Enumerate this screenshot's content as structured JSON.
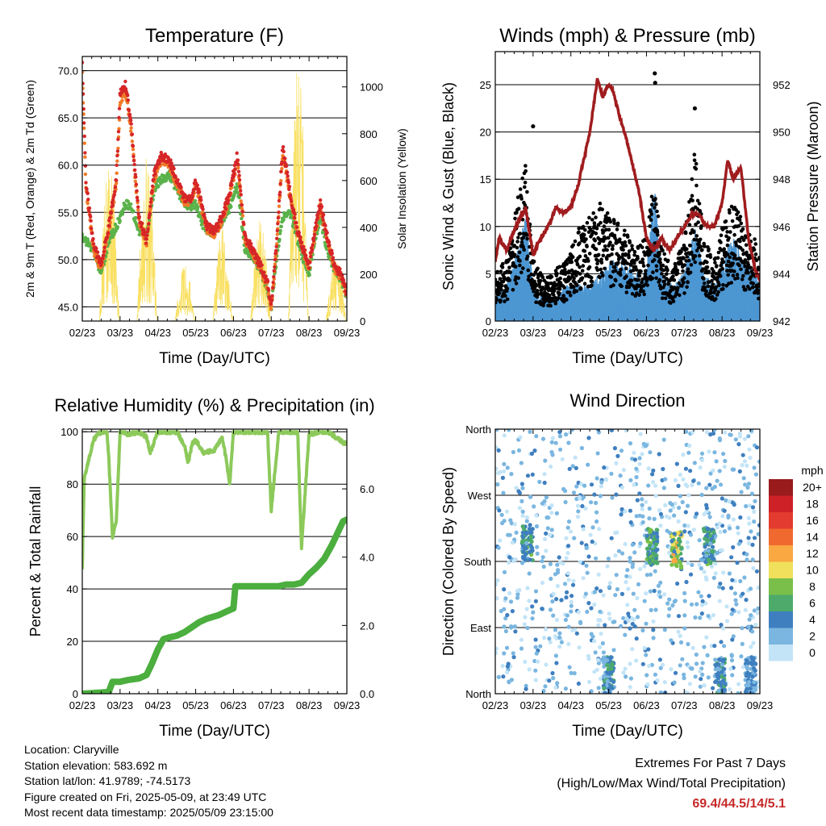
{
  "chart_data": [
    {
      "type": "line",
      "title": "Temperature (F)",
      "xlabel": "Time (Day/UTC)",
      "ylabel": "2m & 9m T (Red, Orange) & 2m Td (Green)",
      "ylabel_right": "Solar Insolation (Yellow)",
      "x_ticks": [
        "02/23",
        "03/23",
        "04/23",
        "05/23",
        "06/23",
        "07/23",
        "08/23",
        "09/23"
      ],
      "ylim": [
        43.5,
        71.5
      ],
      "y_ticks": [
        "45.0",
        "50.0",
        "55.0",
        "60.0",
        "65.0",
        "70.0"
      ],
      "y_tick_values": [
        45,
        50,
        55,
        60,
        65,
        70
      ],
      "ylim_right": [
        0,
        1130
      ],
      "y_ticks_right": [
        "0",
        "200",
        "400",
        "600",
        "800",
        "1000"
      ],
      "y_tick_values_right": [
        0,
        200,
        400,
        600,
        800,
        1000
      ],
      "grid": "horizontal",
      "series": [
        {
          "key": "t2m",
          "color": "#d62628",
          "style": "dots",
          "x": [
            0,
            0.1,
            0.3,
            0.5,
            0.7,
            0.9,
            1.0,
            1.15,
            1.3,
            1.5,
            1.7,
            1.9,
            2.1,
            2.3,
            2.5,
            2.7,
            2.9,
            3.0,
            3.15,
            3.3,
            3.5,
            3.7,
            3.9,
            4.1,
            4.3,
            4.5,
            4.7,
            4.9,
            5.0,
            5.15,
            5.3,
            5.5,
            5.7,
            5.9,
            6.0,
            6.15,
            6.3,
            6.5,
            6.7,
            6.85,
            7.0
          ],
          "y": [
            70.5,
            58.0,
            51.5,
            49.5,
            53.5,
            58.5,
            67.5,
            68.5,
            64.0,
            54.5,
            52.0,
            59.0,
            61.0,
            60.5,
            58.5,
            56.5,
            56.5,
            58.5,
            56.0,
            53.5,
            53.0,
            54.5,
            57.0,
            61.0,
            52.5,
            51.0,
            49.5,
            47.5,
            45.0,
            52.0,
            62.0,
            57.0,
            53.0,
            50.5,
            49.5,
            53.0,
            56.0,
            52.0,
            49.0,
            48.5,
            46.5
          ]
        },
        {
          "key": "t9m",
          "color": "#f07a28",
          "style": "dots",
          "x": [
            0,
            0.1,
            0.3,
            0.5,
            0.7,
            0.9,
            1.0,
            1.15,
            1.3,
            1.5,
            1.7,
            1.9,
            2.1,
            2.3,
            2.5,
            2.7,
            2.9,
            3.0,
            3.15,
            3.3,
            3.5,
            3.7,
            3.9,
            4.1,
            4.3,
            4.5,
            4.7,
            4.9,
            5.0,
            5.15,
            5.3,
            5.5,
            5.7,
            5.9,
            6.0,
            6.15,
            6.3,
            6.5,
            6.7,
            6.85,
            7.0
          ],
          "y": [
            69.8,
            57.5,
            51.0,
            49.0,
            53.0,
            58.0,
            66.5,
            67.8,
            63.5,
            54.0,
            51.7,
            58.6,
            60.6,
            60.0,
            58.0,
            56.2,
            56.2,
            58.0,
            55.6,
            53.2,
            52.7,
            54.1,
            56.6,
            60.5,
            52.2,
            50.7,
            49.2,
            47.2,
            44.8,
            51.7,
            61.3,
            56.6,
            52.7,
            50.2,
            49.2,
            52.7,
            55.5,
            51.7,
            48.7,
            48.2,
            46.2
          ]
        },
        {
          "key": "td2m",
          "color": "#5ab24a",
          "style": "dots",
          "x": [
            0,
            0.1,
            0.3,
            0.5,
            0.7,
            0.9,
            1.0,
            1.15,
            1.3,
            1.5,
            1.7,
            1.9,
            2.1,
            2.3,
            2.5,
            2.7,
            2.9,
            3.0,
            3.15,
            3.3,
            3.5,
            3.7,
            3.9,
            4.1,
            4.3,
            4.5,
            4.7,
            4.9,
            5.0,
            5.15,
            5.3,
            5.5,
            5.7,
            5.9,
            6.0,
            6.15,
            6.3,
            6.5,
            6.7,
            6.85,
            7.0
          ],
          "y": [
            52.5,
            52.0,
            51.0,
            48.5,
            52.0,
            53.5,
            54.5,
            56.0,
            55.5,
            53.0,
            52.5,
            57.5,
            58.5,
            59.0,
            57.5,
            56.0,
            55.5,
            56.0,
            54.0,
            53.0,
            53.0,
            54.0,
            55.5,
            58.0,
            51.0,
            50.5,
            49.0,
            47.0,
            44.8,
            50.5,
            54.5,
            55.0,
            52.0,
            49.5,
            48.5,
            52.0,
            54.5,
            50.5,
            48.5,
            48.0,
            46.0
          ]
        },
        {
          "key": "solar",
          "color": "#f9e062",
          "style": "spikes",
          "axis": "right",
          "days": [
            {
              "start": 0.45,
              "end": 0.98,
              "peak": 700
            },
            {
              "start": 1.45,
              "end": 1.98,
              "peak": 720
            },
            {
              "start": 2.45,
              "end": 2.98,
              "peak": 240
            },
            {
              "start": 3.45,
              "end": 3.98,
              "peak": 400
            },
            {
              "start": 4.45,
              "end": 4.98,
              "peak": 440
            },
            {
              "start": 5.45,
              "end": 5.98,
              "peak": 1120
            },
            {
              "start": 6.45,
              "end": 6.98,
              "peak": 280
            }
          ]
        }
      ]
    },
    {
      "type": "scatter",
      "title": "Winds (mph) & Pressure (mb)",
      "xlabel": "Time (Day/UTC)",
      "ylabel": "Sonic Wind & Gust (Blue, Black)",
      "ylabel_right": "Station Pressure (Maroon)",
      "x_ticks": [
        "02/23",
        "03/23",
        "04/23",
        "05/23",
        "06/23",
        "07/23",
        "08/23",
        "09/23"
      ],
      "ylim": [
        0,
        28.5
      ],
      "y_ticks": [
        "0",
        "5",
        "10",
        "15",
        "20",
        "25"
      ],
      "y_tick_values": [
        0,
        5,
        10,
        15,
        20,
        25
      ],
      "ylim_right": [
        942,
        953.4
      ],
      "y_ticks_right": [
        "942",
        "944",
        "946",
        "948",
        "950",
        "952"
      ],
      "y_tick_values_right": [
        942,
        944,
        946,
        948,
        950,
        952
      ],
      "grid": "horizontal",
      "series": [
        {
          "key": "wind",
          "color": "#4d97d3",
          "style": "band",
          "x": [
            0,
            0.3,
            0.6,
            0.8,
            1.0,
            1.3,
            1.6,
            1.9,
            2.2,
            2.5,
            2.8,
            3.1,
            3.4,
            3.7,
            4.0,
            4.2,
            4.4,
            4.7,
            5.0,
            5.3,
            5.5,
            5.8,
            6.0,
            6.3,
            6.6,
            6.9,
            7.0
          ],
          "y": [
            2,
            3,
            6,
            9,
            3,
            2,
            2,
            3,
            3,
            3,
            4,
            5,
            5,
            4,
            4,
            12,
            4,
            3,
            4,
            8,
            4,
            3,
            5,
            7,
            5,
            4,
            3
          ]
        },
        {
          "key": "gust",
          "color": "#000000",
          "style": "dots",
          "x": [
            0,
            0.3,
            0.6,
            0.8,
            1.0,
            1.3,
            1.6,
            1.9,
            2.2,
            2.5,
            2.8,
            3.1,
            3.4,
            3.7,
            4.0,
            4.2,
            4.4,
            4.7,
            5.0,
            5.3,
            5.5,
            5.8,
            6.0,
            6.3,
            6.6,
            6.9,
            7.0
          ],
          "y": [
            5,
            6,
            12,
            15,
            6,
            4,
            5,
            6,
            9,
            10,
            12,
            10,
            9,
            7,
            8,
            14,
            7,
            5,
            8,
            17,
            8,
            6,
            9,
            12,
            9,
            8,
            6
          ]
        },
        {
          "key": "pressure",
          "color": "#a01c1e",
          "style": "line",
          "axis": "right",
          "x": [
            0,
            0.1,
            0.3,
            0.55,
            0.8,
            1.0,
            1.2,
            1.4,
            1.6,
            1.8,
            2.0,
            2.2,
            2.5,
            2.7,
            2.85,
            3.0,
            3.1,
            3.3,
            3.5,
            3.8,
            4.0,
            4.2,
            4.4,
            4.6,
            4.8,
            5.0,
            5.2,
            5.4,
            5.6,
            5.8,
            6.0,
            6.15,
            6.3,
            6.5,
            6.7,
            6.9,
            7.0
          ],
          "y": [
            944.5,
            945.5,
            945.0,
            946.0,
            946.8,
            944.8,
            945.5,
            946.0,
            946.8,
            946.6,
            946.8,
            947.8,
            950.0,
            952.2,
            951.5,
            952.0,
            951.8,
            950.6,
            949.5,
            947.5,
            945.5,
            945.0,
            945.5,
            945.0,
            945.5,
            946.0,
            946.5,
            946.5,
            946.0,
            946.0,
            947.0,
            948.8,
            948.0,
            948.5,
            945.5,
            944.0,
            943.8
          ]
        }
      ],
      "gust_outliers": [
        {
          "x": 4.22,
          "y": 26.2
        },
        {
          "x": 4.23,
          "y": 25.2
        },
        {
          "x": 1.0,
          "y": 20.6
        },
        {
          "x": 5.28,
          "y": 22.5
        }
      ]
    },
    {
      "type": "line",
      "title": "Relative Humidity (%) & Precipitation (in)",
      "xlabel": "Time (Day/UTC)",
      "ylabel": "Percent & Total Rainfall",
      "x_ticks": [
        "02/23",
        "03/23",
        "04/23",
        "05/23",
        "06/23",
        "07/23",
        "08/23",
        "09/23"
      ],
      "ylim": [
        0,
        101
      ],
      "y_ticks": [
        "0",
        "20",
        "40",
        "60",
        "80",
        "100"
      ],
      "y_tick_values": [
        0,
        20,
        40,
        60,
        80,
        100
      ],
      "ylim_right": [
        0,
        7.75
      ],
      "y_ticks_right": [
        "0.0",
        "2.0",
        "4.0",
        "6.0"
      ],
      "y_tick_values_right": [
        0,
        2,
        4,
        6
      ],
      "grid": "horizontal",
      "series": [
        {
          "key": "rh",
          "color": "#8cc95a",
          "style": "line",
          "width": 4,
          "x": [
            0,
            0.05,
            0.15,
            0.3,
            0.5,
            0.65,
            0.7,
            0.8,
            0.9,
            1.0,
            1.05,
            1.2,
            1.5,
            1.7,
            1.8,
            2.0,
            2.3,
            2.5,
            2.7,
            2.8,
            2.9,
            3.0,
            3.2,
            3.5,
            3.7,
            3.8,
            3.9,
            4.0,
            4.2,
            4.5,
            4.7,
            4.9,
            5.0,
            5.2,
            5.4,
            5.5,
            5.6,
            5.7,
            5.8,
            6.0,
            6.3,
            6.5,
            6.7,
            6.9,
            7.0
          ],
          "y": [
            48,
            82,
            88,
            97,
            100,
            100,
            90,
            60,
            66,
            100,
            100,
            99,
            100,
            98,
            92,
            100,
            100,
            100,
            95,
            88,
            95,
            97,
            92,
            93,
            98,
            90,
            80,
            100,
            100,
            100,
            100,
            100,
            70,
            100,
            100,
            100,
            100,
            100,
            56,
            99,
            100,
            100,
            98,
            96,
            95
          ]
        },
        {
          "key": "precip",
          "color": "#4bae3e",
          "style": "line",
          "width": 8,
          "axis": "right",
          "x": [
            0,
            0.7,
            0.8,
            1.0,
            1.2,
            1.5,
            1.7,
            1.85,
            2.0,
            2.15,
            2.3,
            2.5,
            2.7,
            2.9,
            3.1,
            3.3,
            3.6,
            3.8,
            4.0,
            4.05,
            4.3,
            4.6,
            4.8,
            5.0,
            5.2,
            5.4,
            5.6,
            5.8,
            6.0,
            6.2,
            6.4,
            6.6,
            6.75,
            6.9,
            7.0
          ],
          "y": [
            0,
            0.05,
            0.35,
            0.35,
            0.4,
            0.45,
            0.55,
            0.9,
            1.3,
            1.6,
            1.65,
            1.7,
            1.8,
            1.95,
            2.1,
            2.2,
            2.3,
            2.4,
            2.5,
            3.15,
            3.15,
            3.15,
            3.15,
            3.15,
            3.15,
            3.2,
            3.2,
            3.25,
            3.5,
            3.7,
            3.95,
            4.35,
            4.7,
            5.05,
            5.1
          ]
        }
      ]
    },
    {
      "type": "scatter",
      "title": "Wind Direction",
      "xlabel": "Time (Day/UTC)",
      "ylabel": "Direction (Colored By Speed)",
      "x_ticks": [
        "02/23",
        "03/23",
        "04/23",
        "05/23",
        "06/23",
        "07/23",
        "08/23",
        "09/23"
      ],
      "y_ticks": [
        "North",
        "East",
        "South",
        "West",
        "North"
      ],
      "y_tick_values": [
        0,
        90,
        180,
        270,
        360
      ],
      "ylim": [
        0,
        360
      ],
      "grid": "horizontal",
      "legend_title": "mph",
      "legend_placement": "right",
      "legend_labels": [
        "20+",
        "18",
        "16",
        "14",
        "12",
        "10",
        "8",
        "6",
        "4",
        "2",
        "0"
      ],
      "legend_colors": [
        "#991b1b",
        "#cd2027",
        "#e33b2f",
        "#f06a30",
        "#f9a842",
        "#f0e05b",
        "#79bf4a",
        "#4daa6b",
        "#3f7fbf",
        "#7ab6e0",
        "#c3e4f7"
      ],
      "clusters": [
        {
          "x": 0.85,
          "dir": 205,
          "speed": 6
        },
        {
          "x": 4.15,
          "dir": 200,
          "speed": 7
        },
        {
          "x": 4.8,
          "dir": 195,
          "speed": 10
        },
        {
          "x": 5.65,
          "dir": 200,
          "speed": 6
        },
        {
          "x": 3.0,
          "dir": 25,
          "speed": 5
        },
        {
          "x": 5.95,
          "dir": 22,
          "speed": 5
        },
        {
          "x": 6.75,
          "dir": 25,
          "speed": 4
        }
      ]
    }
  ],
  "info": {
    "location": "Location: Claryville",
    "elevation": "Station elevation: 583.692 m",
    "latlon": "Station lat/lon: 41.9789; -74.5173",
    "created": "Figure created on Fri, 2025-05-09, at 23:49 UTC",
    "recent": "Most recent data timestamp: 2025/05/09 23:15:00"
  },
  "extremes": {
    "heading": "Extremes For Past 7 Days",
    "subheading": "(High/Low/Max Wind/Total Precipitation)",
    "values": "69.4/44.5/14/5.1"
  }
}
